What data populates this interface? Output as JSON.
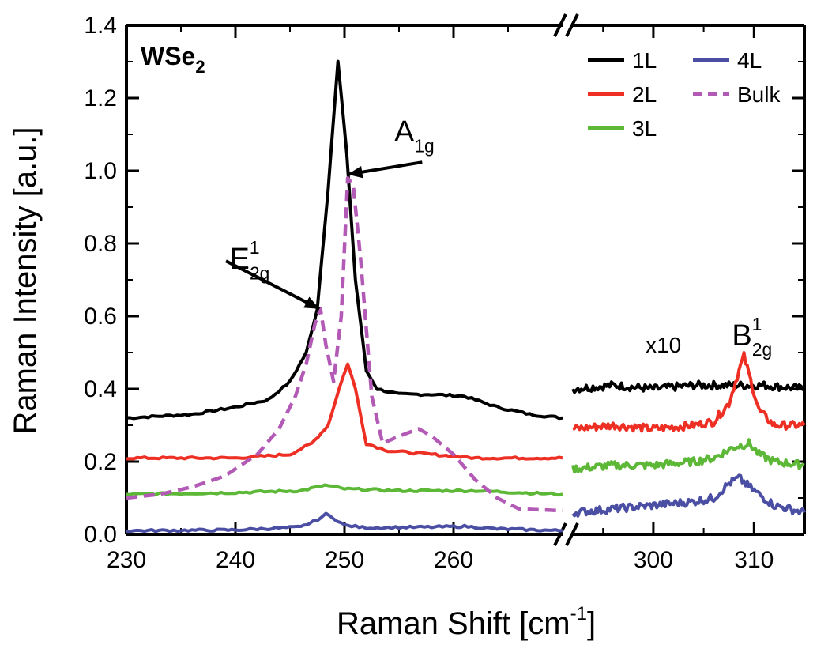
{
  "chart_data": {
    "type": "line",
    "title": "WSe₂",
    "title_main": "WSe",
    "title_sub": "2",
    "xlabel": "Raman Shift [cm",
    "xlabel_sup": "-1",
    "xlabel_end": "]",
    "ylabel": "Raman Intensity [a.u.]",
    "ylim": [
      0.0,
      1.4
    ],
    "yticks": [
      "0.0",
      "0.2",
      "0.4",
      "0.6",
      "0.8",
      "1.0",
      "1.2",
      "1.4"
    ],
    "broken_x_axis": true,
    "segments": [
      {
        "xlim": [
          230,
          270
        ],
        "xticks": [
          "230",
          "240",
          "250",
          "260"
        ]
      },
      {
        "xlim": [
          292,
          315
        ],
        "xticks": [
          "300",
          "310"
        ]
      }
    ],
    "legend_position": "top-right",
    "series": [
      {
        "name": "1L",
        "color": "#000000",
        "dash": false,
        "left": [
          [
            230,
            0.32
          ],
          [
            236,
            0.33
          ],
          [
            240,
            0.35
          ],
          [
            243,
            0.37
          ],
          [
            245,
            0.42
          ],
          [
            246.5,
            0.5
          ],
          [
            247.5,
            0.62
          ],
          [
            248.5,
            0.95
          ],
          [
            249.4,
            1.3
          ],
          [
            250.2,
            1.05
          ],
          [
            251,
            0.7
          ],
          [
            252,
            0.45
          ],
          [
            253,
            0.4
          ],
          [
            255,
            0.385
          ],
          [
            258,
            0.385
          ],
          [
            261,
            0.38
          ],
          [
            264,
            0.35
          ],
          [
            267,
            0.33
          ],
          [
            270,
            0.32
          ]
        ],
        "right": [
          [
            292,
            0.4
          ],
          [
            296,
            0.41
          ],
          [
            300,
            0.4
          ],
          [
            304,
            0.41
          ],
          [
            308,
            0.41
          ],
          [
            311,
            0.41
          ],
          [
            315,
            0.4
          ]
        ]
      },
      {
        "name": "2L",
        "color": "#ee2f24",
        "dash": false,
        "left": [
          [
            230,
            0.21
          ],
          [
            240,
            0.21
          ],
          [
            245,
            0.22
          ],
          [
            247,
            0.25
          ],
          [
            248.5,
            0.3
          ],
          [
            249.5,
            0.4
          ],
          [
            250.3,
            0.47
          ],
          [
            251,
            0.4
          ],
          [
            252,
            0.25
          ],
          [
            254,
            0.23
          ],
          [
            258,
            0.22
          ],
          [
            262,
            0.21
          ],
          [
            270,
            0.21
          ]
        ],
        "right": [
          [
            292,
            0.29
          ],
          [
            296,
            0.3
          ],
          [
            300,
            0.29
          ],
          [
            304,
            0.3
          ],
          [
            306,
            0.31
          ],
          [
            307.5,
            0.36
          ],
          [
            308.5,
            0.45
          ],
          [
            309,
            0.49
          ],
          [
            309.5,
            0.44
          ],
          [
            310.5,
            0.34
          ],
          [
            312,
            0.3
          ],
          [
            315,
            0.3
          ]
        ]
      },
      {
        "name": "3L",
        "color": "#5cb836",
        "dash": false,
        "left": [
          [
            230,
            0.11
          ],
          [
            240,
            0.115
          ],
          [
            246,
            0.12
          ],
          [
            248.2,
            0.135
          ],
          [
            250,
            0.125
          ],
          [
            255,
            0.12
          ],
          [
            262,
            0.12
          ],
          [
            270,
            0.11
          ]
        ],
        "right": [
          [
            292,
            0.18
          ],
          [
            296,
            0.19
          ],
          [
            300,
            0.19
          ],
          [
            304,
            0.2
          ],
          [
            306,
            0.21
          ],
          [
            308,
            0.24
          ],
          [
            309.5,
            0.25
          ],
          [
            310.5,
            0.22
          ],
          [
            312,
            0.2
          ],
          [
            315,
            0.19
          ]
        ]
      },
      {
        "name": "4L",
        "color": "#4b4fa3",
        "dash": false,
        "left": [
          [
            230,
            0.01
          ],
          [
            240,
            0.012
          ],
          [
            246,
            0.02
          ],
          [
            247.5,
            0.04
          ],
          [
            248.3,
            0.055
          ],
          [
            249,
            0.045
          ],
          [
            250,
            0.025
          ],
          [
            252,
            0.018
          ],
          [
            258,
            0.02
          ],
          [
            261,
            0.022
          ],
          [
            264,
            0.015
          ],
          [
            270,
            0.01
          ]
        ],
        "right": [
          [
            292,
            0.06
          ],
          [
            296,
            0.07
          ],
          [
            300,
            0.08
          ],
          [
            304,
            0.09
          ],
          [
            306,
            0.1
          ],
          [
            307.5,
            0.14
          ],
          [
            308.5,
            0.155
          ],
          [
            310,
            0.12
          ],
          [
            312,
            0.08
          ],
          [
            315,
            0.06
          ]
        ]
      },
      {
        "name": "Bulk",
        "color": "#b25ab5",
        "dash": true,
        "left": [
          [
            230,
            0.1
          ],
          [
            233,
            0.11
          ],
          [
            236,
            0.13
          ],
          [
            239,
            0.16
          ],
          [
            242,
            0.22
          ],
          [
            244,
            0.29
          ],
          [
            245.5,
            0.38
          ],
          [
            246.5,
            0.47
          ],
          [
            247.3,
            0.58
          ],
          [
            247.8,
            0.62
          ],
          [
            248.3,
            0.52
          ],
          [
            249,
            0.42
          ],
          [
            249.7,
            0.6
          ],
          [
            250.3,
            0.98
          ],
          [
            250.8,
            0.96
          ],
          [
            251.5,
            0.75
          ],
          [
            252.5,
            0.38
          ],
          [
            253.5,
            0.25
          ],
          [
            255,
            0.27
          ],
          [
            256.8,
            0.29
          ],
          [
            258,
            0.27
          ],
          [
            260,
            0.22
          ],
          [
            262,
            0.15
          ],
          [
            264,
            0.1
          ],
          [
            266,
            0.07
          ],
          [
            270,
            0.065
          ]
        ],
        "right": []
      }
    ],
    "annotations": [
      {
        "text": "A",
        "sub": "1g",
        "sup": "",
        "target": [
          250.3,
          0.99
        ],
        "text_at": [
          256.4,
          1.08
        ]
      },
      {
        "text": "E",
        "sub": "2g",
        "sup": "1",
        "target": [
          247.7,
          0.62
        ],
        "text_at": [
          241.3,
          0.73
        ]
      },
      {
        "text": "B",
        "sub": "2g",
        "sup": "1",
        "target": null,
        "text_at": [
          309.8,
          0.52
        ]
      },
      {
        "text": "x10",
        "sub": "",
        "sup": "",
        "target": null,
        "text_at": [
          301.0,
          0.5
        ]
      }
    ]
  }
}
